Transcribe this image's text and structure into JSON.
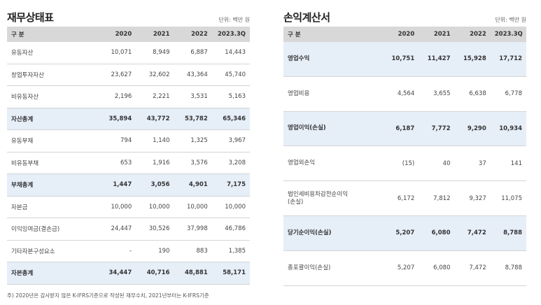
{
  "balance_sheet": {
    "title": "재무상태표",
    "unit": "단위: 백만 원",
    "columns": [
      "구 분",
      "2020",
      "2021",
      "2022",
      "2023.3Q"
    ],
    "rows": [
      {
        "label": "유동자산",
        "values": [
          "10,071",
          "8,949",
          "6,887",
          "14,443"
        ],
        "highlight": false
      },
      {
        "label": "창업투자자산",
        "values": [
          "23,627",
          "32,602",
          "43,364",
          "45,740"
        ],
        "highlight": false
      },
      {
        "label": "비유동자산",
        "values": [
          "2,196",
          "2,221",
          "3,531",
          "5,163"
        ],
        "highlight": false
      },
      {
        "label": "자산총계",
        "values": [
          "35,894",
          "43,772",
          "53,782",
          "65,346"
        ],
        "highlight": true
      },
      {
        "label": "유동부채",
        "values": [
          "794",
          "1,140",
          "1,325",
          "3,967"
        ],
        "highlight": false
      },
      {
        "label": "비유동부채",
        "values": [
          "653",
          "1,916",
          "3,576",
          "3,208"
        ],
        "highlight": false
      },
      {
        "label": "부채총계",
        "values": [
          "1,447",
          "3,056",
          "4,901",
          "7,175"
        ],
        "highlight": true
      },
      {
        "label": "자본금",
        "values": [
          "10,000",
          "10,000",
          "10,000",
          "10,000"
        ],
        "highlight": false
      },
      {
        "label": "이익잉여금(결손금)",
        "values": [
          "24,447",
          "30,526",
          "37,998",
          "46,786"
        ],
        "highlight": false
      },
      {
        "label": "기타자본구성요소",
        "values": [
          "-",
          "190",
          "883",
          "1,385"
        ],
        "highlight": false
      },
      {
        "label": "자본총계",
        "values": [
          "34,447",
          "40,716",
          "48,881",
          "58,171"
        ],
        "highlight": true
      }
    ]
  },
  "income_statement": {
    "title": "손익계산서",
    "unit": "단위: 백만 원",
    "columns": [
      "구 분",
      "2020",
      "2021",
      "2022",
      "2023.3Q"
    ],
    "rows": [
      {
        "label": "영업수익",
        "values": [
          "10,751",
          "11,427",
          "15,928",
          "17,712"
        ],
        "highlight": true
      },
      {
        "label": "영업비용",
        "values": [
          "4,564",
          "3,655",
          "6,638",
          "6,778"
        ],
        "highlight": false
      },
      {
        "label": "영업이익(손실)",
        "values": [
          "6,187",
          "7,772",
          "9,290",
          "10,934"
        ],
        "highlight": true
      },
      {
        "label": "영업외손익",
        "values": [
          "(15)",
          "40",
          "37",
          "141"
        ],
        "highlight": false
      },
      {
        "label": "법인세비용차감전순이익\n(손실)",
        "values": [
          "6,172",
          "7,812",
          "9,327",
          "11,075"
        ],
        "highlight": false
      },
      {
        "label": "당기순이익(손실)",
        "values": [
          "5,207",
          "6,080",
          "7,472",
          "8,788"
        ],
        "highlight": true
      },
      {
        "label": "총포괄이익(손실)",
        "values": [
          "5,207",
          "6,080",
          "7,472",
          "8,788"
        ],
        "highlight": false
      }
    ]
  },
  "footnote": "주) 2020년은 감사받지 않은 K-IFRS기준으로 작성된 재무수치, 2021년부터는 K-IFRS기준"
}
